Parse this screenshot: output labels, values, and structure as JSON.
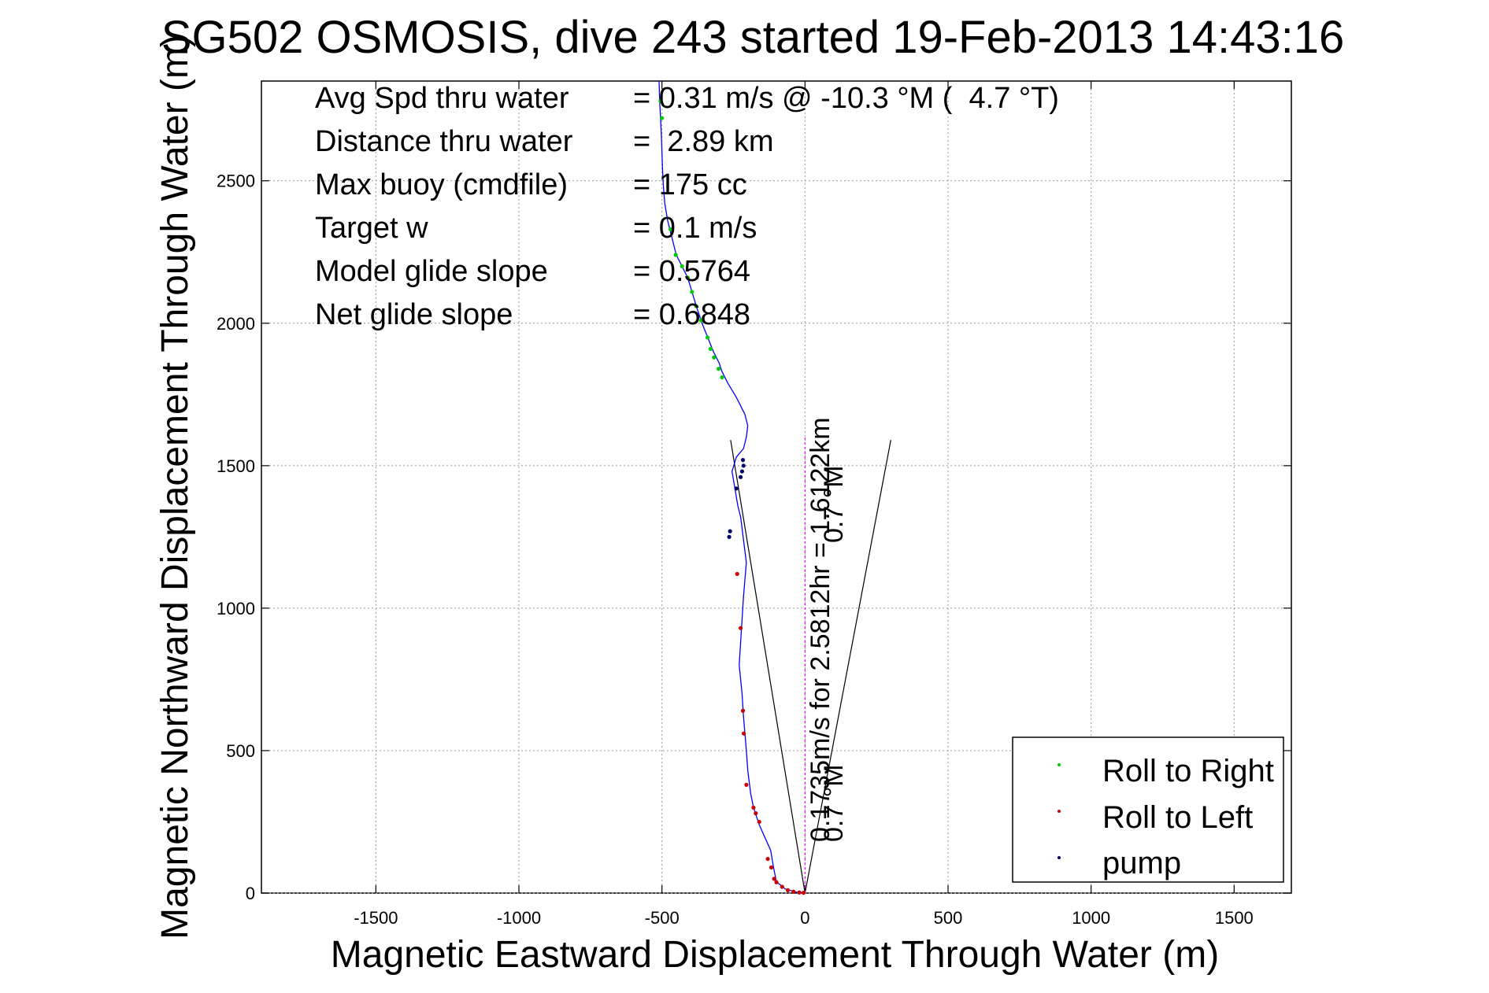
{
  "chart_data": {
    "type": "line",
    "title": "SG502 OSMOSIS, dive 243 started 19-Feb-2013 14:43:16",
    "xlabel": "Magnetic Eastward Displacement Through Water (m)",
    "ylabel": "Magnetic Northward Displacement Through Water (m)",
    "xlim": [
      -1900,
      1700
    ],
    "ylim": [
      0,
      2850
    ],
    "xticks": [
      -1500,
      -1000,
      -500,
      0,
      500,
      1000,
      1500
    ],
    "yticks": [
      0,
      500,
      1000,
      1500,
      2000,
      2500
    ],
    "grid": true,
    "legend_position": "bottom-right",
    "stats": [
      {
        "label": "Avg Spd thru water",
        "value": "= 0.31 m/s @ -10.3 °M (  4.7 °T)"
      },
      {
        "label": "Distance thru water",
        "value": "=  2.89 km"
      },
      {
        "label": "Max buoy (cmdfile)",
        "value": "= 175 cc"
      },
      {
        "label": "Target w",
        "value": "= 0.1 m/s"
      },
      {
        "label": "Model glide slope",
        "value": "= 0.5764"
      },
      {
        "label": "Net glide slope",
        "value": "= 0.6848"
      }
    ],
    "annotations": [
      {
        "text": "0.1735m/s for 2.5812hr = 1.6122km"
      },
      {
        "text": "0.7 °M"
      },
      {
        "text": "0.7 °M"
      }
    ],
    "track": {
      "x": [
        0,
        -30,
        -70,
        -100,
        -110,
        -120,
        -160,
        -180,
        -190,
        -200,
        -205,
        -210,
        -215,
        -220,
        -230,
        -225,
        -220,
        -215,
        -210,
        -205,
        -210,
        -215,
        -220,
        -225,
        -235,
        -245,
        -255,
        -240,
        -215,
        -205,
        -200,
        -210,
        -240,
        -270,
        -280,
        -290,
        -300,
        -320,
        -340,
        -360,
        -380,
        -395,
        -410,
        -430,
        -450,
        -465,
        -480,
        -490,
        -495,
        -498,
        -500,
        -502,
        -505,
        -508,
        -510
      ],
      "y": [
        0,
        3,
        15,
        40,
        90,
        150,
        240,
        300,
        350,
        430,
        500,
        560,
        620,
        700,
        800,
        880,
        960,
        1040,
        1100,
        1160,
        1200,
        1240,
        1280,
        1320,
        1360,
        1420,
        1480,
        1530,
        1560,
        1600,
        1640,
        1680,
        1740,
        1790,
        1810,
        1830,
        1860,
        1900,
        1950,
        2000,
        2060,
        2110,
        2160,
        2200,
        2240,
        2300,
        2360,
        2420,
        2480,
        2540,
        2600,
        2660,
        2720,
        2780,
        2850
      ]
    },
    "series": [
      {
        "name": "Roll to Right",
        "color": "#00cc00",
        "x": [
          -505,
          -500,
          -470,
          -452,
          -430,
          -410,
          -395,
          -380,
          -363,
          -341,
          -330,
          -318,
          -302,
          -290
        ],
        "y": [
          2780,
          2720,
          2330,
          2240,
          2200,
          2160,
          2110,
          2060,
          2010,
          1950,
          1910,
          1880,
          1840,
          1810
        ]
      },
      {
        "name": "Roll to Left",
        "color": "#cc0000",
        "x": [
          -237,
          -225,
          -217,
          -214,
          -205,
          -180,
          -172,
          -160,
          -130,
          -118,
          -108,
          -100,
          -80,
          -60,
          -40,
          -20,
          -5
        ],
        "y": [
          1120,
          930,
          640,
          560,
          380,
          300,
          280,
          250,
          120,
          90,
          50,
          38,
          22,
          10,
          5,
          2,
          1
        ]
      },
      {
        "name": "pump",
        "color": "#000066",
        "x": [
          -217,
          -215,
          -220,
          -225,
          -240,
          -262,
          -265
        ],
        "y": [
          1520,
          1500,
          1480,
          1460,
          1420,
          1270,
          1250
        ]
      }
    ],
    "wedge_lines": [
      {
        "color": "#000000",
        "x": [
          0,
          -260
        ],
        "y": [
          0,
          1590
        ]
      },
      {
        "color": "#000000",
        "x": [
          0,
          300
        ],
        "y": [
          0,
          1590
        ]
      },
      {
        "color": "#ff00ff",
        "x": [
          0,
          0
        ],
        "y": [
          0,
          1600
        ]
      }
    ]
  }
}
